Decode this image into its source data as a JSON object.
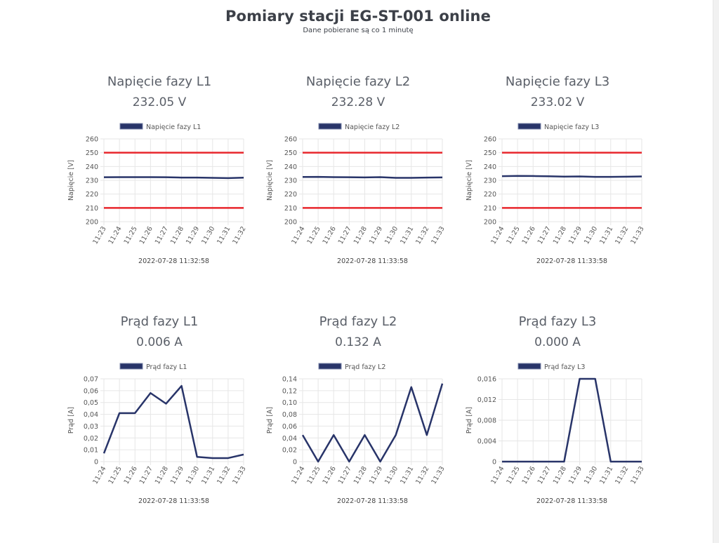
{
  "page": {
    "title": "Pomiary stacji EG-ST-001 online",
    "subtitle": "Dane pobierane są co 1 minutę"
  },
  "colors": {
    "series": "#283469",
    "limit": "#e8262c",
    "grid": "#e6e6e6"
  },
  "panels": [
    {
      "title": "Napięcie fazy L1",
      "value": "232.05 V"
    },
    {
      "title": "Napięcie fazy L2",
      "value": "232.28 V"
    },
    {
      "title": "Napięcie fazy L3",
      "value": "233.02 V"
    },
    {
      "title": "Prąd fazy L1",
      "value": "0.006 A"
    },
    {
      "title": "Prąd fazy L2",
      "value": "0.132 A"
    },
    {
      "title": "Prąd fazy L3",
      "value": "0.000 A"
    }
  ],
  "chart_data": [
    {
      "type": "line",
      "categories": [
        "11:23",
        "11:24",
        "11:25",
        "11:26",
        "11:27",
        "11:28",
        "11:29",
        "11:30",
        "11:31",
        "11:32"
      ],
      "series": [
        {
          "name": "Napięcie fazy L1",
          "values": [
            232.2,
            232.3,
            232.3,
            232.3,
            232.2,
            232.0,
            232.0,
            231.8,
            231.6,
            231.9
          ]
        }
      ],
      "limits": [
        210,
        250
      ],
      "ylabel": "Napięcie [V]",
      "ylim": [
        200,
        260
      ],
      "yticks": [
        "200",
        "210",
        "220",
        "230",
        "240",
        "250",
        "260"
      ],
      "xlabel": "2022-07-28 11:32:58"
    },
    {
      "type": "line",
      "categories": [
        "11:24",
        "11:25",
        "11:26",
        "11:27",
        "11:28",
        "11:29",
        "11:30",
        "11:31",
        "11:32",
        "11:33"
      ],
      "series": [
        {
          "name": "Napięcie fazy L2",
          "values": [
            232.4,
            232.5,
            232.3,
            232.2,
            232.1,
            232.3,
            231.8,
            231.8,
            232.0,
            232.1
          ]
        }
      ],
      "limits": [
        210,
        250
      ],
      "ylabel": "Napięcie [V]",
      "ylim": [
        200,
        260
      ],
      "yticks": [
        "200",
        "210",
        "220",
        "230",
        "240",
        "250",
        "260"
      ],
      "xlabel": "2022-07-28 11:33:58"
    },
    {
      "type": "line",
      "categories": [
        "11:24",
        "11:25",
        "11:26",
        "11:27",
        "11:28",
        "11:29",
        "11:30",
        "11:31",
        "11:32",
        "11:33"
      ],
      "series": [
        {
          "name": "Napięcie fazy L3",
          "values": [
            233.0,
            233.2,
            233.1,
            232.9,
            232.7,
            232.8,
            232.5,
            232.5,
            232.6,
            232.8
          ]
        }
      ],
      "limits": [
        210,
        250
      ],
      "ylabel": "Napięcie [V]",
      "ylim": [
        200,
        260
      ],
      "yticks": [
        "200",
        "210",
        "220",
        "230",
        "240",
        "250",
        "260"
      ],
      "xlabel": "2022-07-28 11:33:58"
    },
    {
      "type": "line",
      "categories": [
        "11:24",
        "11:25",
        "11:26",
        "11:27",
        "11:28",
        "11:29",
        "11:30",
        "11:31",
        "11:32",
        "11:33"
      ],
      "series": [
        {
          "name": "Prąd fazy L1",
          "values": [
            0.007,
            0.041,
            0.041,
            0.058,
            0.049,
            0.064,
            0.004,
            0.003,
            0.003,
            0.006
          ]
        }
      ],
      "ylabel": "Prąd [A]",
      "ylim": [
        0,
        0.07
      ],
      "yticks": [
        "0",
        "0,01",
        "0,02",
        "0,03",
        "0,04",
        "0,05",
        "0,06",
        "0,07"
      ],
      "xlabel": "2022-07-28 11:33:58"
    },
    {
      "type": "line",
      "categories": [
        "11:24",
        "11:25",
        "11:26",
        "11:27",
        "11:28",
        "11:29",
        "11:30",
        "11:31",
        "11:32",
        "11:33"
      ],
      "series": [
        {
          "name": "Prąd fazy L2",
          "values": [
            0.045,
            0,
            0.045,
            0,
            0.045,
            0,
            0.045,
            0.126,
            0.045,
            0.132
          ]
        }
      ],
      "ylabel": "Prąd [A]",
      "ylim": [
        0,
        0.14
      ],
      "yticks": [
        "0",
        "0,02",
        "0,04",
        "0,06",
        "0,08",
        "0,10",
        "0,12",
        "0,14"
      ],
      "xlabel": "2022-07-28 11:33:58"
    },
    {
      "type": "line",
      "categories": [
        "11:24",
        "11:25",
        "11:26",
        "11:27",
        "11:28",
        "11:29",
        "11:30",
        "11:31",
        "11:32",
        "11:33"
      ],
      "series": [
        {
          "name": "Prąd fazy L3",
          "values": [
            0,
            0,
            0,
            0,
            0,
            0.016,
            0.016,
            0,
            0,
            0
          ]
        }
      ],
      "ylabel": "Prąd [A]",
      "ylim": [
        0,
        0.016
      ],
      "yticks": [
        "0",
        "0,004",
        "0,008",
        "0,012",
        "0,016"
      ],
      "xlabel": "2022-07-28 11:33:58"
    }
  ]
}
